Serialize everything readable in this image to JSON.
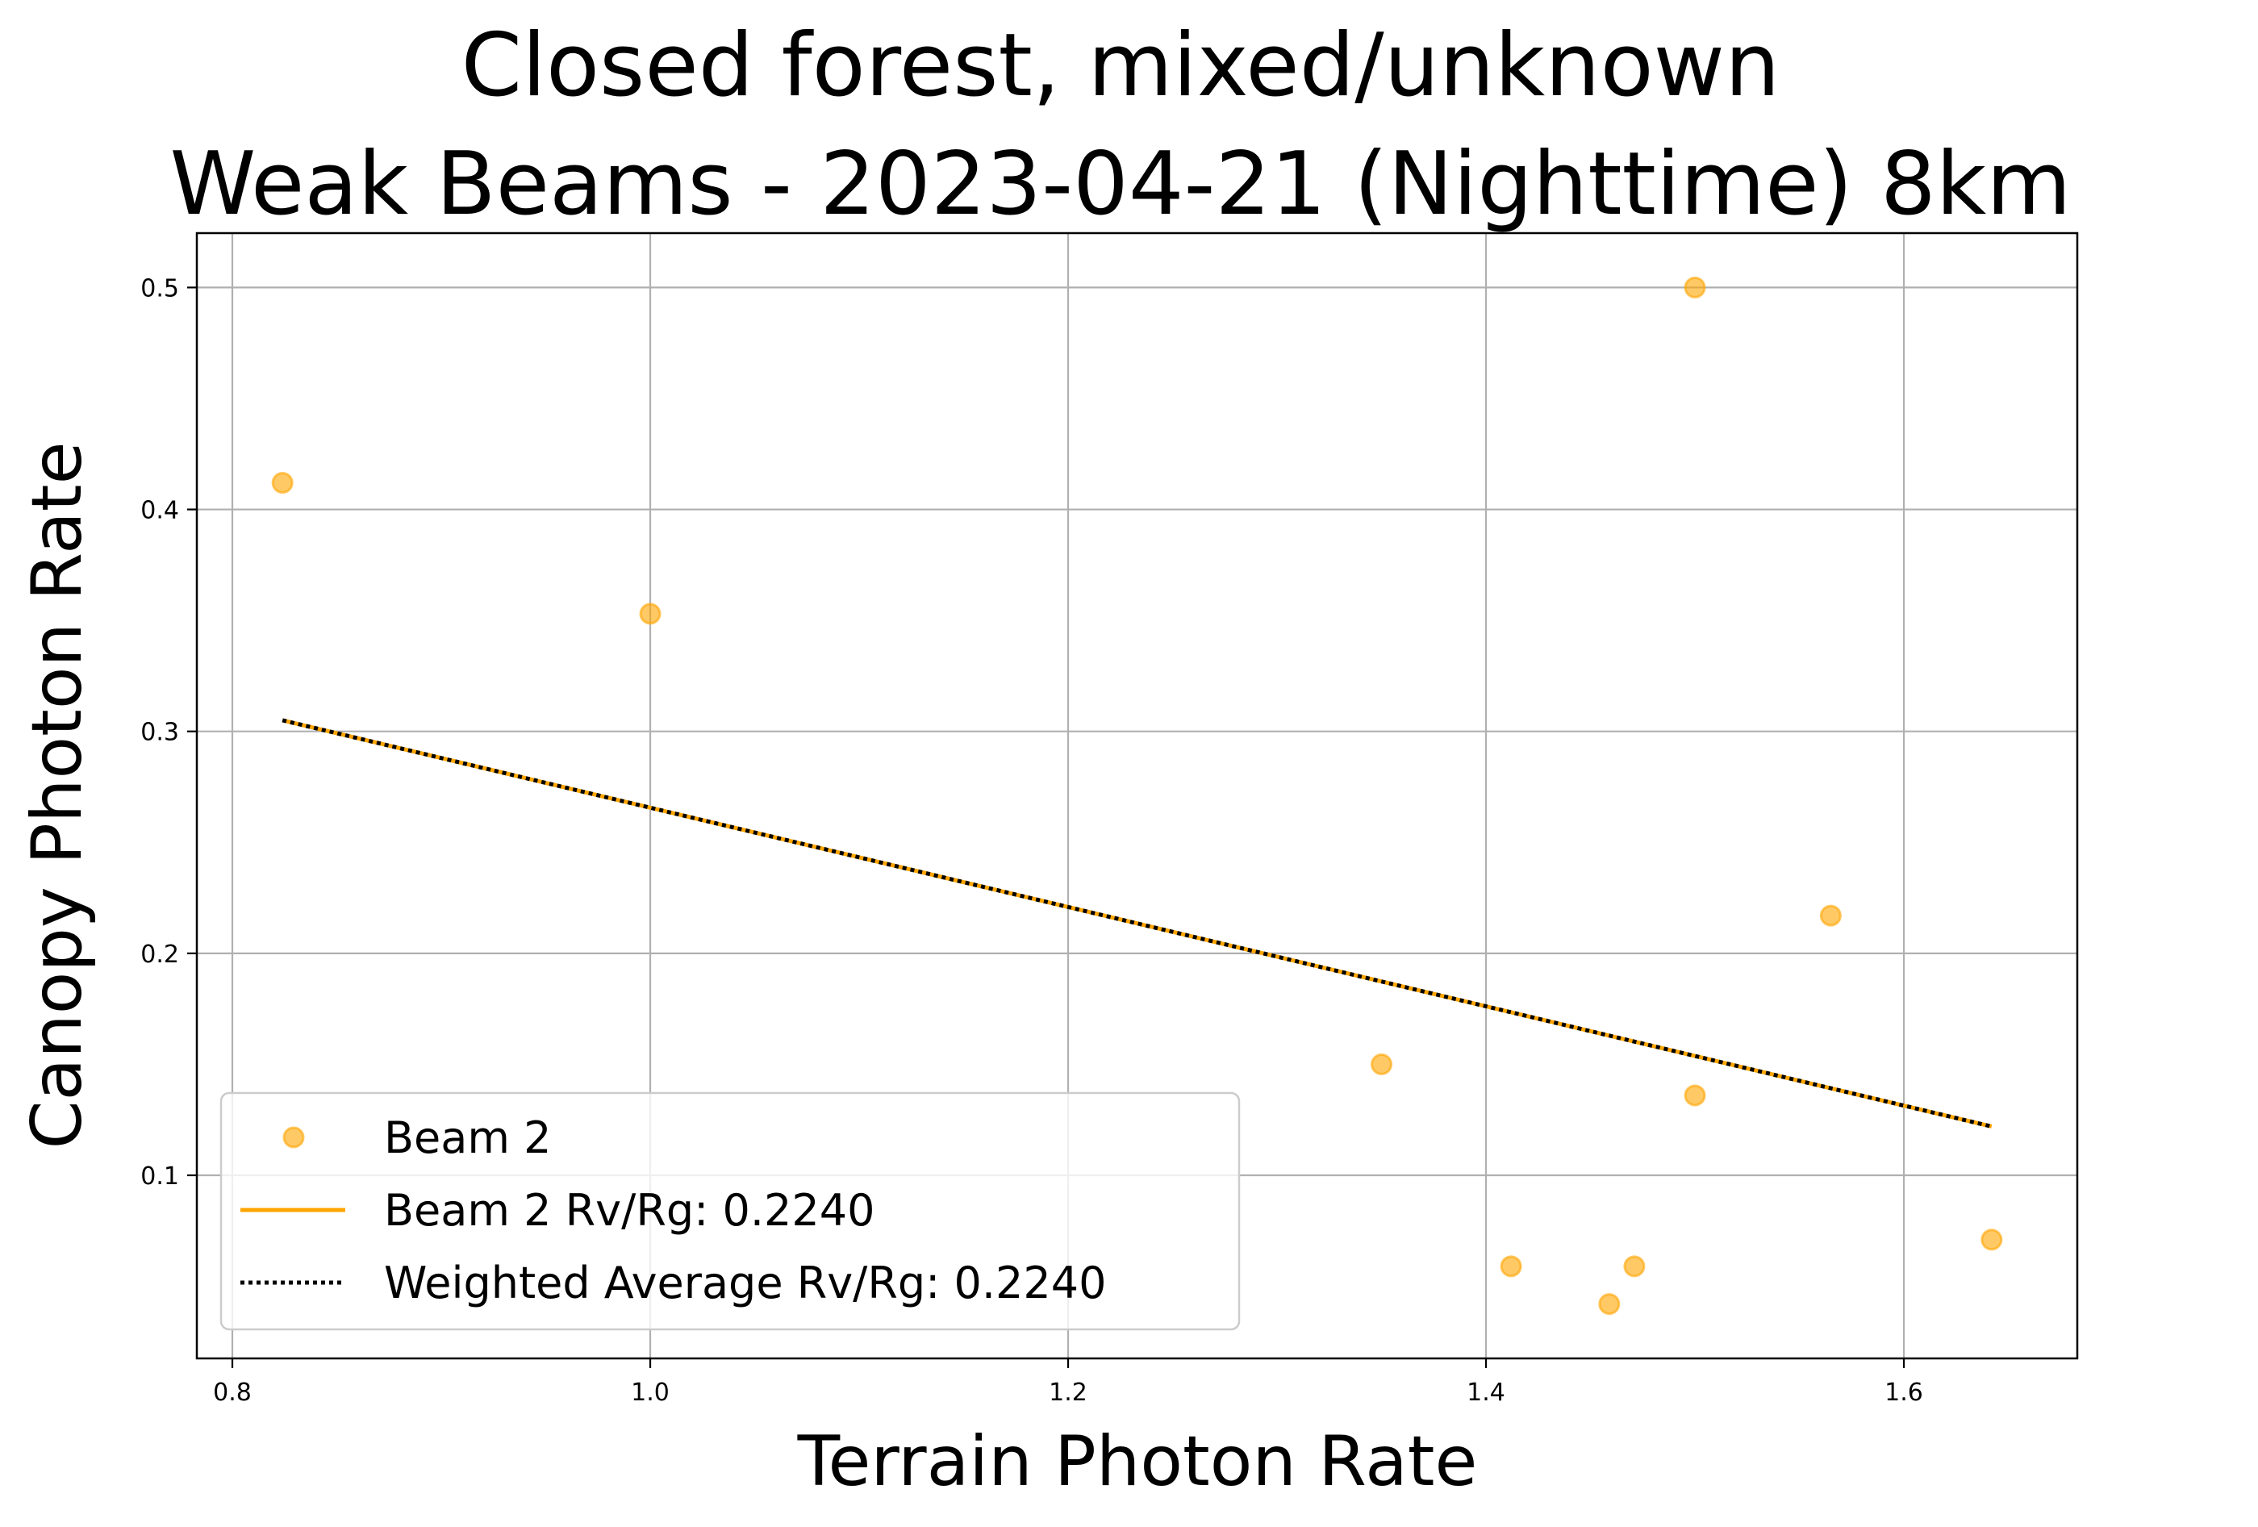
{
  "chart_data": {
    "type": "scatter",
    "title": [
      "Closed forest, mixed/unknown",
      "Weak Beams - 2023-04-21 (Nighttime) 8km"
    ],
    "xlabel": "Terrain Photon Rate",
    "ylabel": "Canopy Photon Rate",
    "xlim": [
      0.783,
      1.683
    ],
    "ylim": [
      0.0175,
      0.5245
    ],
    "xticks": [
      0.8,
      1.0,
      1.2,
      1.4,
      1.6
    ],
    "xtick_labels": [
      "0.8",
      "1.0",
      "1.2",
      "1.4",
      "1.6"
    ],
    "yticks": [
      0.1,
      0.2,
      0.3,
      0.4,
      0.5
    ],
    "ytick_labels": [
      "0.1",
      "0.2",
      "0.3",
      "0.4",
      "0.5"
    ],
    "grid": true,
    "legend_position": "lower-left",
    "series": [
      {
        "name": "Beam 2",
        "kind": "scatter",
        "color": "#FFA500",
        "x": [
          0.824,
          1.0,
          1.35,
          1.412,
          1.459,
          1.471,
          1.5,
          1.5,
          1.565,
          1.642
        ],
        "y": [
          0.412,
          0.353,
          0.15,
          0.059,
          0.042,
          0.059,
          0.5,
          0.136,
          0.217,
          0.071
        ]
      },
      {
        "name": "Beam 2 Rv/Rg: 0.2240",
        "kind": "line",
        "style": "solid",
        "color": "#FFA500",
        "x": [
          0.824,
          1.642
        ],
        "y": [
          0.305,
          0.122
        ]
      },
      {
        "name": "Weighted Average Rv/Rg: 0.2240",
        "kind": "line",
        "style": "dotted",
        "color": "#000000",
        "x": [
          0.824,
          1.642
        ],
        "y": [
          0.305,
          0.122
        ]
      }
    ]
  }
}
